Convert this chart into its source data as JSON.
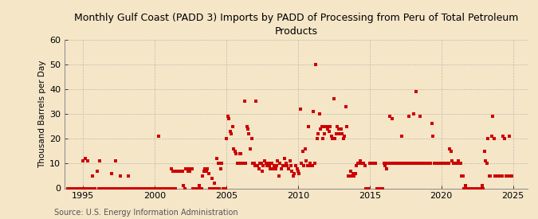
{
  "title": "Monthly Gulf Coast (PADD 3) Imports by PADD of Processing from Peru of Total Petroleum\nProducts",
  "ylabel": "Thousand Barrels per Day",
  "source": "Source: U.S. Energy Information Administration",
  "background_color": "#f5e6c8",
  "marker_color": "#cc0000",
  "xlim": [
    1993.7,
    2026.0
  ],
  "ylim": [
    0,
    60
  ],
  "yticks": [
    0,
    10,
    20,
    30,
    40,
    50,
    60
  ],
  "xticks": [
    1995,
    2000,
    2005,
    2010,
    2015,
    2020,
    2025
  ],
  "data": [
    [
      1993.9,
      0
    ],
    [
      1994.0,
      0
    ],
    [
      1994.1,
      0
    ],
    [
      1994.2,
      0
    ],
    [
      1994.3,
      0
    ],
    [
      1994.4,
      0
    ],
    [
      1994.5,
      0
    ],
    [
      1994.6,
      0
    ],
    [
      1994.7,
      0
    ],
    [
      1994.8,
      0
    ],
    [
      1994.9,
      0
    ],
    [
      1995.0,
      11
    ],
    [
      1995.08,
      0
    ],
    [
      1995.17,
      12
    ],
    [
      1995.25,
      0
    ],
    [
      1995.33,
      11
    ],
    [
      1995.42,
      0
    ],
    [
      1995.5,
      0
    ],
    [
      1995.58,
      0
    ],
    [
      1995.67,
      5
    ],
    [
      1995.75,
      0
    ],
    [
      1995.83,
      0
    ],
    [
      1996.0,
      7
    ],
    [
      1996.08,
      0
    ],
    [
      1996.17,
      11
    ],
    [
      1996.25,
      0
    ],
    [
      1996.33,
      0
    ],
    [
      1996.42,
      0
    ],
    [
      1996.5,
      0
    ],
    [
      1996.58,
      0
    ],
    [
      1996.67,
      0
    ],
    [
      1996.75,
      0
    ],
    [
      1996.83,
      0
    ],
    [
      1996.92,
      0
    ],
    [
      1997.0,
      6
    ],
    [
      1997.08,
      0
    ],
    [
      1997.17,
      0
    ],
    [
      1997.25,
      11
    ],
    [
      1997.33,
      0
    ],
    [
      1997.42,
      0
    ],
    [
      1997.5,
      0
    ],
    [
      1997.58,
      5
    ],
    [
      1997.67,
      0
    ],
    [
      1997.75,
      0
    ],
    [
      1997.83,
      0
    ],
    [
      1997.92,
      0
    ],
    [
      1998.0,
      0
    ],
    [
      1998.08,
      0
    ],
    [
      1998.17,
      5
    ],
    [
      1998.25,
      0
    ],
    [
      1998.33,
      0
    ],
    [
      1998.42,
      0
    ],
    [
      1998.5,
      0
    ],
    [
      1998.58,
      0
    ],
    [
      1998.67,
      0
    ],
    [
      1998.75,
      0
    ],
    [
      1998.83,
      0
    ],
    [
      1998.92,
      0
    ],
    [
      1999.0,
      0
    ],
    [
      1999.08,
      0
    ],
    [
      1999.17,
      0
    ],
    [
      1999.25,
      0
    ],
    [
      1999.33,
      0
    ],
    [
      1999.42,
      0
    ],
    [
      1999.5,
      0
    ],
    [
      1999.58,
      0
    ],
    [
      1999.67,
      0
    ],
    [
      1999.75,
      0
    ],
    [
      1999.83,
      0
    ],
    [
      1999.92,
      0
    ],
    [
      2000.0,
      0
    ],
    [
      2000.08,
      0
    ],
    [
      2000.17,
      0
    ],
    [
      2000.25,
      21
    ],
    [
      2000.33,
      0
    ],
    [
      2000.42,
      0
    ],
    [
      2000.5,
      0
    ],
    [
      2000.58,
      0
    ],
    [
      2000.67,
      0
    ],
    [
      2000.75,
      0
    ],
    [
      2000.83,
      0
    ],
    [
      2000.92,
      0
    ],
    [
      2001.0,
      0
    ],
    [
      2001.08,
      0
    ],
    [
      2001.17,
      8
    ],
    [
      2001.25,
      7
    ],
    [
      2001.33,
      0
    ],
    [
      2001.42,
      0
    ],
    [
      2001.5,
      7
    ],
    [
      2001.58,
      7
    ],
    [
      2001.67,
      7
    ],
    [
      2001.75,
      7
    ],
    [
      2001.83,
      7
    ],
    [
      2001.92,
      7
    ],
    [
      2002.0,
      1
    ],
    [
      2002.08,
      0
    ],
    [
      2002.17,
      8
    ],
    [
      2002.25,
      8
    ],
    [
      2002.33,
      7
    ],
    [
      2002.42,
      7
    ],
    [
      2002.5,
      8
    ],
    [
      2002.58,
      8
    ],
    [
      2002.67,
      0
    ],
    [
      2002.75,
      0
    ],
    [
      2002.83,
      0
    ],
    [
      2002.92,
      0
    ],
    [
      2003.0,
      0
    ],
    [
      2003.08,
      1
    ],
    [
      2003.17,
      0
    ],
    [
      2003.25,
      0
    ],
    [
      2003.33,
      5
    ],
    [
      2003.42,
      7
    ],
    [
      2003.5,
      8
    ],
    [
      2003.58,
      7
    ],
    [
      2003.67,
      8
    ],
    [
      2003.75,
      6
    ],
    [
      2003.83,
      0
    ],
    [
      2003.92,
      0
    ],
    [
      2004.0,
      4
    ],
    [
      2004.08,
      0
    ],
    [
      2004.17,
      2
    ],
    [
      2004.25,
      0
    ],
    [
      2004.33,
      12
    ],
    [
      2004.42,
      10
    ],
    [
      2004.5,
      0
    ],
    [
      2004.58,
      8
    ],
    [
      2004.67,
      10
    ],
    [
      2004.75,
      0
    ],
    [
      2004.83,
      0
    ],
    [
      2004.92,
      0
    ],
    [
      2005.0,
      20
    ],
    [
      2005.08,
      29
    ],
    [
      2005.17,
      28
    ],
    [
      2005.25,
      23
    ],
    [
      2005.33,
      22
    ],
    [
      2005.42,
      25
    ],
    [
      2005.5,
      16
    ],
    [
      2005.58,
      15
    ],
    [
      2005.67,
      14
    ],
    [
      2005.75,
      10
    ],
    [
      2005.83,
      10
    ],
    [
      2005.92,
      14
    ],
    [
      2006.0,
      14
    ],
    [
      2006.08,
      10
    ],
    [
      2006.17,
      10
    ],
    [
      2006.25,
      35
    ],
    [
      2006.33,
      10
    ],
    [
      2006.42,
      25
    ],
    [
      2006.5,
      24
    ],
    [
      2006.58,
      22
    ],
    [
      2006.67,
      16
    ],
    [
      2006.75,
      20
    ],
    [
      2006.83,
      10
    ],
    [
      2006.92,
      10
    ],
    [
      2007.0,
      9
    ],
    [
      2007.08,
      35
    ],
    [
      2007.17,
      9
    ],
    [
      2007.25,
      8
    ],
    [
      2007.33,
      10
    ],
    [
      2007.42,
      10
    ],
    [
      2007.5,
      7
    ],
    [
      2007.58,
      9
    ],
    [
      2007.67,
      11
    ],
    [
      2007.75,
      10
    ],
    [
      2007.83,
      9
    ],
    [
      2007.92,
      10
    ],
    [
      2008.0,
      9
    ],
    [
      2008.08,
      8
    ],
    [
      2008.17,
      10
    ],
    [
      2008.25,
      8
    ],
    [
      2008.33,
      9
    ],
    [
      2008.42,
      8
    ],
    [
      2008.5,
      9
    ],
    [
      2008.58,
      11
    ],
    [
      2008.67,
      5
    ],
    [
      2008.75,
      10
    ],
    [
      2008.83,
      8
    ],
    [
      2008.92,
      9
    ],
    [
      2009.0,
      9
    ],
    [
      2009.08,
      12
    ],
    [
      2009.17,
      10
    ],
    [
      2009.25,
      9
    ],
    [
      2009.33,
      8
    ],
    [
      2009.42,
      11
    ],
    [
      2009.5,
      9
    ],
    [
      2009.58,
      7
    ],
    [
      2009.67,
      5
    ],
    [
      2009.75,
      6
    ],
    [
      2009.83,
      9
    ],
    [
      2009.92,
      8
    ],
    [
      2010.0,
      7
    ],
    [
      2010.08,
      6
    ],
    [
      2010.17,
      32
    ],
    [
      2010.25,
      10
    ],
    [
      2010.33,
      15
    ],
    [
      2010.42,
      9
    ],
    [
      2010.5,
      16
    ],
    [
      2010.58,
      11
    ],
    [
      2010.67,
      9
    ],
    [
      2010.75,
      25
    ],
    [
      2010.83,
      10
    ],
    [
      2010.92,
      9
    ],
    [
      2011.0,
      9
    ],
    [
      2011.08,
      31
    ],
    [
      2011.17,
      10
    ],
    [
      2011.25,
      50
    ],
    [
      2011.33,
      20
    ],
    [
      2011.42,
      22
    ],
    [
      2011.5,
      30
    ],
    [
      2011.58,
      24
    ],
    [
      2011.67,
      25
    ],
    [
      2011.75,
      20
    ],
    [
      2011.83,
      22
    ],
    [
      2011.92,
      25
    ],
    [
      2012.0,
      25
    ],
    [
      2012.08,
      24
    ],
    [
      2012.17,
      23
    ],
    [
      2012.25,
      25
    ],
    [
      2012.33,
      21
    ],
    [
      2012.42,
      20
    ],
    [
      2012.5,
      36
    ],
    [
      2012.58,
      20
    ],
    [
      2012.67,
      22
    ],
    [
      2012.75,
      25
    ],
    [
      2012.83,
      24
    ],
    [
      2012.92,
      22
    ],
    [
      2013.0,
      24
    ],
    [
      2013.08,
      22
    ],
    [
      2013.17,
      20
    ],
    [
      2013.25,
      21
    ],
    [
      2013.33,
      33
    ],
    [
      2013.42,
      25
    ],
    [
      2013.5,
      5
    ],
    [
      2013.58,
      5
    ],
    [
      2013.67,
      7
    ],
    [
      2013.75,
      5
    ],
    [
      2013.83,
      6
    ],
    [
      2013.92,
      5
    ],
    [
      2014.0,
      6
    ],
    [
      2014.08,
      9
    ],
    [
      2014.17,
      10
    ],
    [
      2014.25,
      10
    ],
    [
      2014.33,
      11
    ],
    [
      2014.42,
      10
    ],
    [
      2014.5,
      10
    ],
    [
      2014.58,
      10
    ],
    [
      2014.67,
      9
    ],
    [
      2014.75,
      0
    ],
    [
      2014.83,
      0
    ],
    [
      2014.92,
      0
    ],
    [
      2015.0,
      10
    ],
    [
      2015.08,
      10
    ],
    [
      2015.17,
      10
    ],
    [
      2015.25,
      10
    ],
    [
      2015.33,
      10
    ],
    [
      2015.42,
      10
    ],
    [
      2015.5,
      0
    ],
    [
      2015.58,
      0
    ],
    [
      2015.67,
      0
    ],
    [
      2015.75,
      0
    ],
    [
      2015.83,
      0
    ],
    [
      2015.92,
      0
    ],
    [
      2016.0,
      10
    ],
    [
      2016.08,
      9
    ],
    [
      2016.17,
      8
    ],
    [
      2016.25,
      10
    ],
    [
      2016.33,
      10
    ],
    [
      2016.42,
      29
    ],
    [
      2016.5,
      10
    ],
    [
      2016.58,
      28
    ],
    [
      2016.67,
      10
    ],
    [
      2016.75,
      10
    ],
    [
      2016.83,
      10
    ],
    [
      2016.92,
      10
    ],
    [
      2017.0,
      10
    ],
    [
      2017.08,
      10
    ],
    [
      2017.17,
      10
    ],
    [
      2017.25,
      21
    ],
    [
      2017.33,
      10
    ],
    [
      2017.42,
      10
    ],
    [
      2017.5,
      10
    ],
    [
      2017.58,
      10
    ],
    [
      2017.67,
      10
    ],
    [
      2017.75,
      29
    ],
    [
      2017.83,
      10
    ],
    [
      2017.92,
      10
    ],
    [
      2018.0,
      10
    ],
    [
      2018.08,
      30
    ],
    [
      2018.17,
      10
    ],
    [
      2018.25,
      39
    ],
    [
      2018.33,
      10
    ],
    [
      2018.42,
      10
    ],
    [
      2018.5,
      29
    ],
    [
      2018.58,
      10
    ],
    [
      2018.67,
      10
    ],
    [
      2018.75,
      10
    ],
    [
      2018.83,
      10
    ],
    [
      2018.92,
      10
    ],
    [
      2019.0,
      10
    ],
    [
      2019.08,
      10
    ],
    [
      2019.17,
      10
    ],
    [
      2019.25,
      10
    ],
    [
      2019.33,
      26
    ],
    [
      2019.42,
      21
    ],
    [
      2019.5,
      10
    ],
    [
      2019.58,
      10
    ],
    [
      2019.67,
      10
    ],
    [
      2019.75,
      10
    ],
    [
      2019.83,
      10
    ],
    [
      2019.92,
      10
    ],
    [
      2020.0,
      10
    ],
    [
      2020.08,
      10
    ],
    [
      2020.17,
      10
    ],
    [
      2020.25,
      10
    ],
    [
      2020.33,
      10
    ],
    [
      2020.42,
      10
    ],
    [
      2020.5,
      10
    ],
    [
      2020.58,
      16
    ],
    [
      2020.67,
      15
    ],
    [
      2020.75,
      11
    ],
    [
      2020.83,
      10
    ],
    [
      2020.92,
      10
    ],
    [
      2021.0,
      10
    ],
    [
      2021.08,
      10
    ],
    [
      2021.17,
      11
    ],
    [
      2021.25,
      10
    ],
    [
      2021.33,
      10
    ],
    [
      2021.42,
      5
    ],
    [
      2021.5,
      5
    ],
    [
      2021.58,
      0
    ],
    [
      2021.67,
      1
    ],
    [
      2021.75,
      0
    ],
    [
      2021.83,
      0
    ],
    [
      2021.92,
      0
    ],
    [
      2022.0,
      0
    ],
    [
      2022.08,
      0
    ],
    [
      2022.17,
      0
    ],
    [
      2022.25,
      0
    ],
    [
      2022.33,
      0
    ],
    [
      2022.42,
      0
    ],
    [
      2022.5,
      0
    ],
    [
      2022.58,
      0
    ],
    [
      2022.67,
      0
    ],
    [
      2022.75,
      0
    ],
    [
      2022.83,
      1
    ],
    [
      2022.92,
      0
    ],
    [
      2023.0,
      15
    ],
    [
      2023.08,
      11
    ],
    [
      2023.17,
      10
    ],
    [
      2023.25,
      20
    ],
    [
      2023.33,
      5
    ],
    [
      2023.42,
      5
    ],
    [
      2023.5,
      21
    ],
    [
      2023.58,
      29
    ],
    [
      2023.67,
      20
    ],
    [
      2023.75,
      5
    ],
    [
      2023.83,
      5
    ],
    [
      2023.92,
      5
    ],
    [
      2024.0,
      5
    ],
    [
      2024.08,
      5
    ],
    [
      2024.17,
      5
    ],
    [
      2024.25,
      5
    ],
    [
      2024.33,
      21
    ],
    [
      2024.42,
      20
    ],
    [
      2024.5,
      5
    ],
    [
      2024.58,
      5
    ],
    [
      2024.67,
      5
    ],
    [
      2024.75,
      21
    ],
    [
      2024.83,
      5
    ],
    [
      2024.92,
      5
    ]
  ]
}
